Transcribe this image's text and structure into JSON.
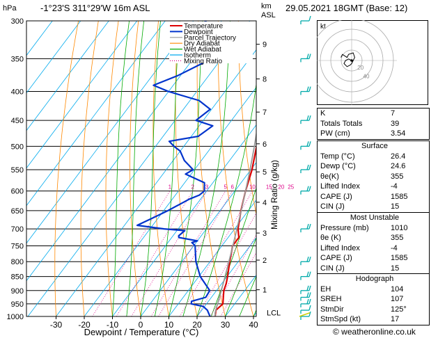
{
  "header": {
    "left_units": "hPa",
    "location": "-1°23'S  311°29'W  16m ASL",
    "km_label": "km",
    "asl_label": "ASL",
    "datetime": "29.05.2021  18GMT  (Base: 12)"
  },
  "chart_data": {
    "type": "line",
    "xlabel": "Dewpoint / Temperature (°C)",
    "ylabel": "Mixing Ratio (g/kg)",
    "x_ticks": [
      -30,
      -20,
      -10,
      0,
      10,
      20,
      30,
      40
    ],
    "pressure_ticks": [
      300,
      350,
      400,
      450,
      500,
      550,
      600,
      650,
      700,
      750,
      800,
      850,
      900,
      950,
      1000
    ],
    "km_ticks": [
      {
        "label": "9",
        "p": 330
      },
      {
        "label": "8",
        "p": 380
      },
      {
        "label": "7",
        "p": 435
      },
      {
        "label": "6",
        "p": 495
      },
      {
        "label": "5",
        "p": 555
      },
      {
        "label": "4",
        "p": 628
      },
      {
        "label": "3",
        "p": 712
      },
      {
        "label": "2",
        "p": 795
      },
      {
        "label": "1",
        "p": 897
      }
    ],
    "lcl_label": "LCL",
    "lcl_p": 985,
    "mixing_ratio_labels": [
      "1",
      "2",
      "3",
      "5",
      "6",
      "10",
      "15",
      "20",
      "25"
    ],
    "legend": [
      "Temperature",
      "Dewpoint",
      "Parcel Trajectory",
      "Dry Adiabat",
      "Wet Adiabat",
      "Isotherm",
      "Mixing Ratio"
    ],
    "colors": {
      "temperature": "#dd0000",
      "dewpoint": "#0033cc",
      "parcel": "#999999",
      "dry_adiabat": "#ff8800",
      "wet_adiabat": "#00aa00",
      "isotherm": "#00aaee",
      "mixing_ratio": "#dd0088"
    },
    "series": [
      {
        "name": "Temperature",
        "points": [
          [
            1000,
            26.4
          ],
          [
            975,
            25.0
          ],
          [
            950,
            25.8
          ],
          [
            925,
            24.2
          ],
          [
            900,
            22.6
          ],
          [
            875,
            21.6
          ],
          [
            850,
            20.2
          ],
          [
            800,
            17.0
          ],
          [
            750,
            13.8
          ],
          [
            725,
            13.8
          ],
          [
            700,
            11.2
          ],
          [
            650,
            7.4
          ],
          [
            600,
            3.8
          ],
          [
            550,
            0.4
          ],
          [
            500,
            -4.2
          ],
          [
            450,
            -9.4
          ],
          [
            420,
            -13.6
          ],
          [
            400,
            -16.4
          ],
          [
            370,
            -21.2
          ],
          [
            350,
            -25.4
          ]
        ]
      },
      {
        "name": "Dewpoint",
        "points": [
          [
            1000,
            24.6
          ],
          [
            975,
            22.0
          ],
          [
            960,
            19.5
          ],
          [
            950,
            14.6
          ],
          [
            940,
            14.0
          ],
          [
            925,
            18.0
          ],
          [
            900,
            17.6
          ],
          [
            850,
            10.5
          ],
          [
            800,
            5.0
          ],
          [
            750,
            0.5
          ],
          [
            740,
            -1.5
          ],
          [
            735,
            0.0
          ],
          [
            725,
            -7.5
          ],
          [
            720,
            -8.0
          ],
          [
            705,
            -7.2
          ],
          [
            700,
            -15.0
          ],
          [
            690,
            -25.5
          ],
          [
            670,
            -22.0
          ],
          [
            650,
            -18.5
          ],
          [
            620,
            -14.0
          ],
          [
            610,
            -11.5
          ],
          [
            600,
            -10.8
          ],
          [
            580,
            -13.0
          ],
          [
            560,
            -22.0
          ],
          [
            550,
            -20.5
          ],
          [
            530,
            -26.0
          ],
          [
            510,
            -30.0
          ],
          [
            500,
            -33.5
          ],
          [
            490,
            -36.5
          ],
          [
            480,
            -27.5
          ],
          [
            460,
            -25.2
          ],
          [
            450,
            -32.6
          ],
          [
            430,
            -30.5
          ],
          [
            415,
            -36.8
          ],
          [
            400,
            -50.0
          ],
          [
            390,
            -57.0
          ],
          [
            375,
            -51.0
          ],
          [
            355,
            -45.0
          ],
          [
            335,
            -40.5
          ],
          [
            320,
            -47.0
          ],
          [
            310,
            -50.0
          ],
          [
            300,
            -56.0
          ]
        ]
      },
      {
        "name": "Parcel Trajectory",
        "points": [
          [
            1000,
            26.4
          ],
          [
            985,
            25.4
          ],
          [
            950,
            23.9
          ],
          [
            900,
            21.7
          ],
          [
            850,
            19.3
          ],
          [
            800,
            16.7
          ],
          [
            750,
            13.9
          ],
          [
            700,
            10.8
          ],
          [
            650,
            7.5
          ],
          [
            600,
            3.8
          ],
          [
            550,
            -0.3
          ],
          [
            500,
            -5.0
          ],
          [
            450,
            -10.4
          ],
          [
            400,
            -16.8
          ],
          [
            350,
            -24.5
          ],
          [
            300,
            -34.0
          ]
        ]
      }
    ],
    "wind_barbs": [
      {
        "p": 1000,
        "dir": 125,
        "speed": 10
      },
      {
        "p": 975,
        "dir": 120,
        "speed": 12
      },
      {
        "p": 950,
        "dir": 115,
        "speed": 15
      },
      {
        "p": 925,
        "dir": 110,
        "speed": 15
      },
      {
        "p": 900,
        "dir": 110,
        "speed": 15
      },
      {
        "p": 850,
        "dir": 105,
        "speed": 20
      },
      {
        "p": 800,
        "dir": 100,
        "speed": 20
      },
      {
        "p": 700,
        "dir": 95,
        "speed": 20
      },
      {
        "p": 600,
        "dir": 90,
        "speed": 15
      },
      {
        "p": 550,
        "dir": 90,
        "speed": 15
      },
      {
        "p": 500,
        "dir": 85,
        "speed": 15
      },
      {
        "p": 450,
        "dir": 90,
        "speed": 20
      },
      {
        "p": 400,
        "dir": 90,
        "speed": 20
      },
      {
        "p": 350,
        "dir": 85,
        "speed": 15
      },
      {
        "p": 300,
        "dir": 80,
        "speed": 10
      }
    ]
  },
  "hodograph": {
    "label": "kt",
    "ring_labels": [
      "20",
      "40"
    ],
    "points": [
      [
        0,
        0
      ],
      [
        -2,
        1
      ],
      [
        -4,
        0
      ],
      [
        -5,
        -2
      ],
      [
        -3,
        -4
      ],
      [
        -1,
        -3
      ],
      [
        0,
        -2
      ],
      [
        2,
        2
      ],
      [
        1,
        5
      ],
      [
        -2,
        4
      ],
      [
        -3,
        2
      ],
      [
        -6,
        4
      ],
      [
        -7,
        2
      ]
    ]
  },
  "indices": [
    {
      "label": "K",
      "value": "7"
    },
    {
      "label": "Totals Totals",
      "value": "39"
    },
    {
      "label": "PW (cm)",
      "value": "3.54"
    }
  ],
  "surface": {
    "title": "Surface",
    "rows": [
      {
        "label": "Temp (°C)",
        "value": "26.4"
      },
      {
        "label": "Dewp (°C)",
        "value": "24.6"
      },
      {
        "label": "θe(K)",
        "value": "355"
      },
      {
        "label": "Lifted Index",
        "value": "-4"
      },
      {
        "label": "CAPE (J)",
        "value": "1585"
      },
      {
        "label": "CIN (J)",
        "value": "15"
      }
    ]
  },
  "most_unstable": {
    "title": "Most Unstable",
    "rows": [
      {
        "label": "Pressure (mb)",
        "value": "1010"
      },
      {
        "label": "θe (K)",
        "value": "355"
      },
      {
        "label": "Lifted Index",
        "value": "-4"
      },
      {
        "label": "CAPE (J)",
        "value": "1585"
      },
      {
        "label": "CIN (J)",
        "value": "15"
      }
    ]
  },
  "hodograph_table": {
    "title": "Hodograph",
    "rows": [
      {
        "label": "EH",
        "value": "104"
      },
      {
        "label": "SREH",
        "value": "107"
      },
      {
        "label": "StmDir",
        "value": "125°"
      },
      {
        "label": "StmSpd (kt)",
        "value": "17"
      }
    ]
  },
  "footer": "© weatheronline.co.uk"
}
